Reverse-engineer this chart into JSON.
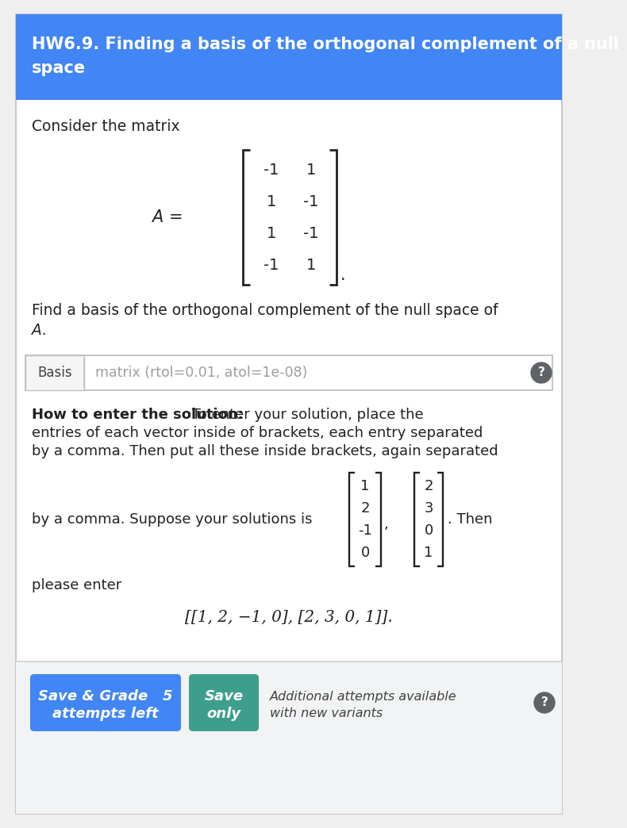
{
  "header_text_line1": "HW6.9. Finding a basis of the orthogonal complement of a null",
  "header_text_line2": "space",
  "header_bg": "#4285f4",
  "header_text_color": "#ffffff",
  "body_bg": "#ffffff",
  "footer_bg": "#f1f3f4",
  "border_color": "#d0d0d0",
  "consider_text": "Consider the matrix",
  "matrix_rows": [
    [
      "-1",
      "1"
    ],
    [
      "1",
      "-1"
    ],
    [
      "1",
      "-1"
    ],
    [
      "-1",
      "1"
    ]
  ],
  "find_line1": "Find a basis of the orthogonal complement of the null space of",
  "find_line2": "A.",
  "basis_label": "Basis",
  "basis_input_text": "matrix (rtol=0.01, atol=1e-08)",
  "howto_bold": "How to enter the solution:",
  "howto_rest": " To enter your solution, place the",
  "howto_line2": "entries of each vector inside of brackets, each entry separated",
  "howto_line3": "by a comma. Then put all these inside brackets, again separated",
  "bycomma_text": "by a comma. Suppose your solutions is",
  "vec1": [
    "1",
    "2",
    "-1",
    "0"
  ],
  "vec2": [
    "2",
    "3",
    "0",
    "1"
  ],
  "then_text": ". Then",
  "please_enter": "please enter",
  "solution_text": "[[1, 2, −1, 0], [2, 3, 0, 1]].",
  "btn1_line1": "Save & Grade   5",
  "btn1_line2": "attempts left",
  "btn1_color": "#4285f4",
  "btn2_line1": "Save",
  "btn2_line2": "only",
  "btn2_color": "#3d9e8c",
  "additional_text_line1": "Additional attempts available",
  "additional_text_line2": "with new variants",
  "question_btn_color": "#5f6368",
  "outer_border_color": "#c8c8c8",
  "outer_bg": "#efefef"
}
